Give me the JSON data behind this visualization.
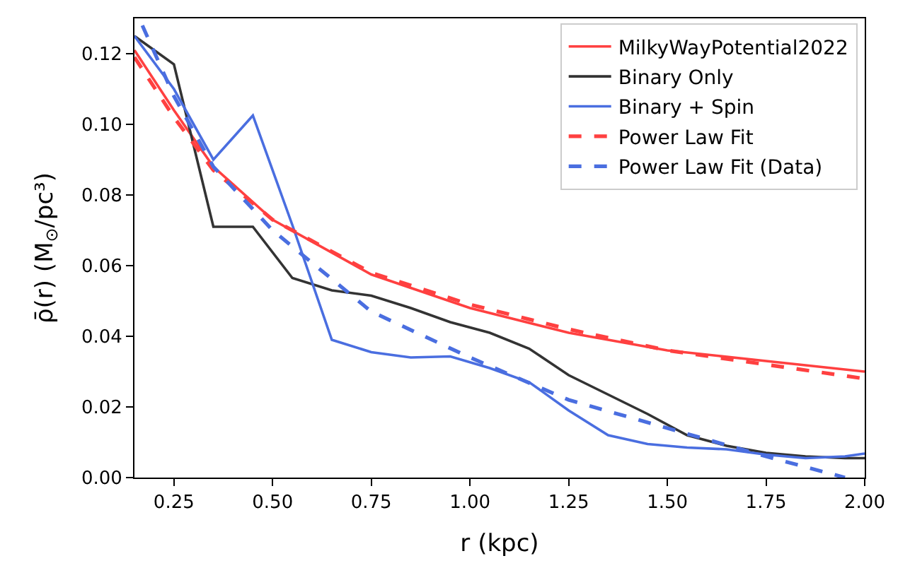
{
  "chart_data": {
    "type": "line",
    "xlabel": "r (kpc)",
    "ylabel": "ρ̄(r) (M$_{⊙}$/pc³)",
    "xlim": [
      0.15,
      2.0
    ],
    "ylim": [
      0,
      0.13
    ],
    "xticks": [
      0.25,
      {
        "value": 0.5,
        "label": "0.50"
      },
      0.75,
      {
        "value": 1.0,
        "label": "1.00"
      },
      1.25,
      {
        "value": 1.5,
        "label": "1.50"
      },
      1.75,
      {
        "value": 2.0,
        "label": "2.00"
      }
    ],
    "yticks": [
      {
        "value": 0,
        "label": "0.00"
      },
      0.02,
      0.04,
      0.06,
      0.08,
      {
        "value": 0.1,
        "label": "0.10"
      },
      0.12
    ],
    "legend": "top right",
    "marker": "none",
    "series": [
      {
        "name": "MilkyWayPotential2022",
        "color": "#ff4040",
        "line_style": "solid",
        "x": [
          0.15,
          0.25,
          0.35,
          0.5,
          0.75,
          1.0,
          1.25,
          1.5,
          1.75,
          2.0
        ],
        "values": [
          0.121,
          0.104,
          0.088,
          0.073,
          0.0575,
          0.048,
          0.041,
          0.036,
          0.033,
          0.03
        ]
      },
      {
        "name": "Binary Only",
        "color": "#333333",
        "line_style": "solid",
        "x": [
          0.15,
          0.25,
          0.35,
          0.45,
          0.55,
          0.65,
          0.75,
          0.85,
          0.95,
          1.05,
          1.15,
          1.25,
          1.35,
          1.45,
          1.55,
          1.65,
          1.75,
          1.85,
          1.95,
          2.0
        ],
        "values": [
          0.125,
          0.117,
          0.071,
          0.071,
          0.0565,
          0.053,
          0.0515,
          0.048,
          0.044,
          0.041,
          0.0365,
          0.029,
          0.0235,
          0.018,
          0.012,
          0.009,
          0.007,
          0.006,
          0.0055,
          0.0055
        ]
      },
      {
        "name": "Binary + Spin",
        "color": "#4a6ee0",
        "line_style": "solid",
        "x": [
          0.15,
          0.25,
          0.35,
          0.45,
          0.55,
          0.65,
          0.75,
          0.85,
          0.95,
          1.05,
          1.15,
          1.25,
          1.35,
          1.45,
          1.55,
          1.65,
          1.75,
          1.85,
          1.95,
          2.0
        ],
        "values": [
          0.125,
          0.11,
          0.09,
          0.1025,
          0.0715,
          0.039,
          0.0355,
          0.034,
          0.0343,
          0.031,
          0.027,
          0.019,
          0.012,
          0.0095,
          0.0085,
          0.008,
          0.0065,
          0.0055,
          0.006,
          0.0068
        ]
      },
      {
        "name": "Power Law Fit",
        "color": "#ff4040",
        "line_style": "dashed",
        "x": [
          0.15,
          0.25,
          0.35,
          0.5,
          0.75,
          1.0,
          1.25,
          1.5,
          1.75,
          2.0
        ],
        "values": [
          0.119,
          0.102,
          0.087,
          0.073,
          0.058,
          0.049,
          0.042,
          0.036,
          0.032,
          0.028
        ]
      },
      {
        "name": "Power Law Fit (Data)",
        "color": "#4a6ee0",
        "line_style": "dashed",
        "x": [
          0.17,
          0.25,
          0.35,
          0.5,
          0.75,
          1.0,
          1.25,
          1.5,
          1.75,
          1.95
        ],
        "values": [
          0.128,
          0.108,
          0.088,
          0.07,
          0.047,
          0.034,
          0.022,
          0.014,
          0.006,
          0.0
        ]
      }
    ]
  }
}
